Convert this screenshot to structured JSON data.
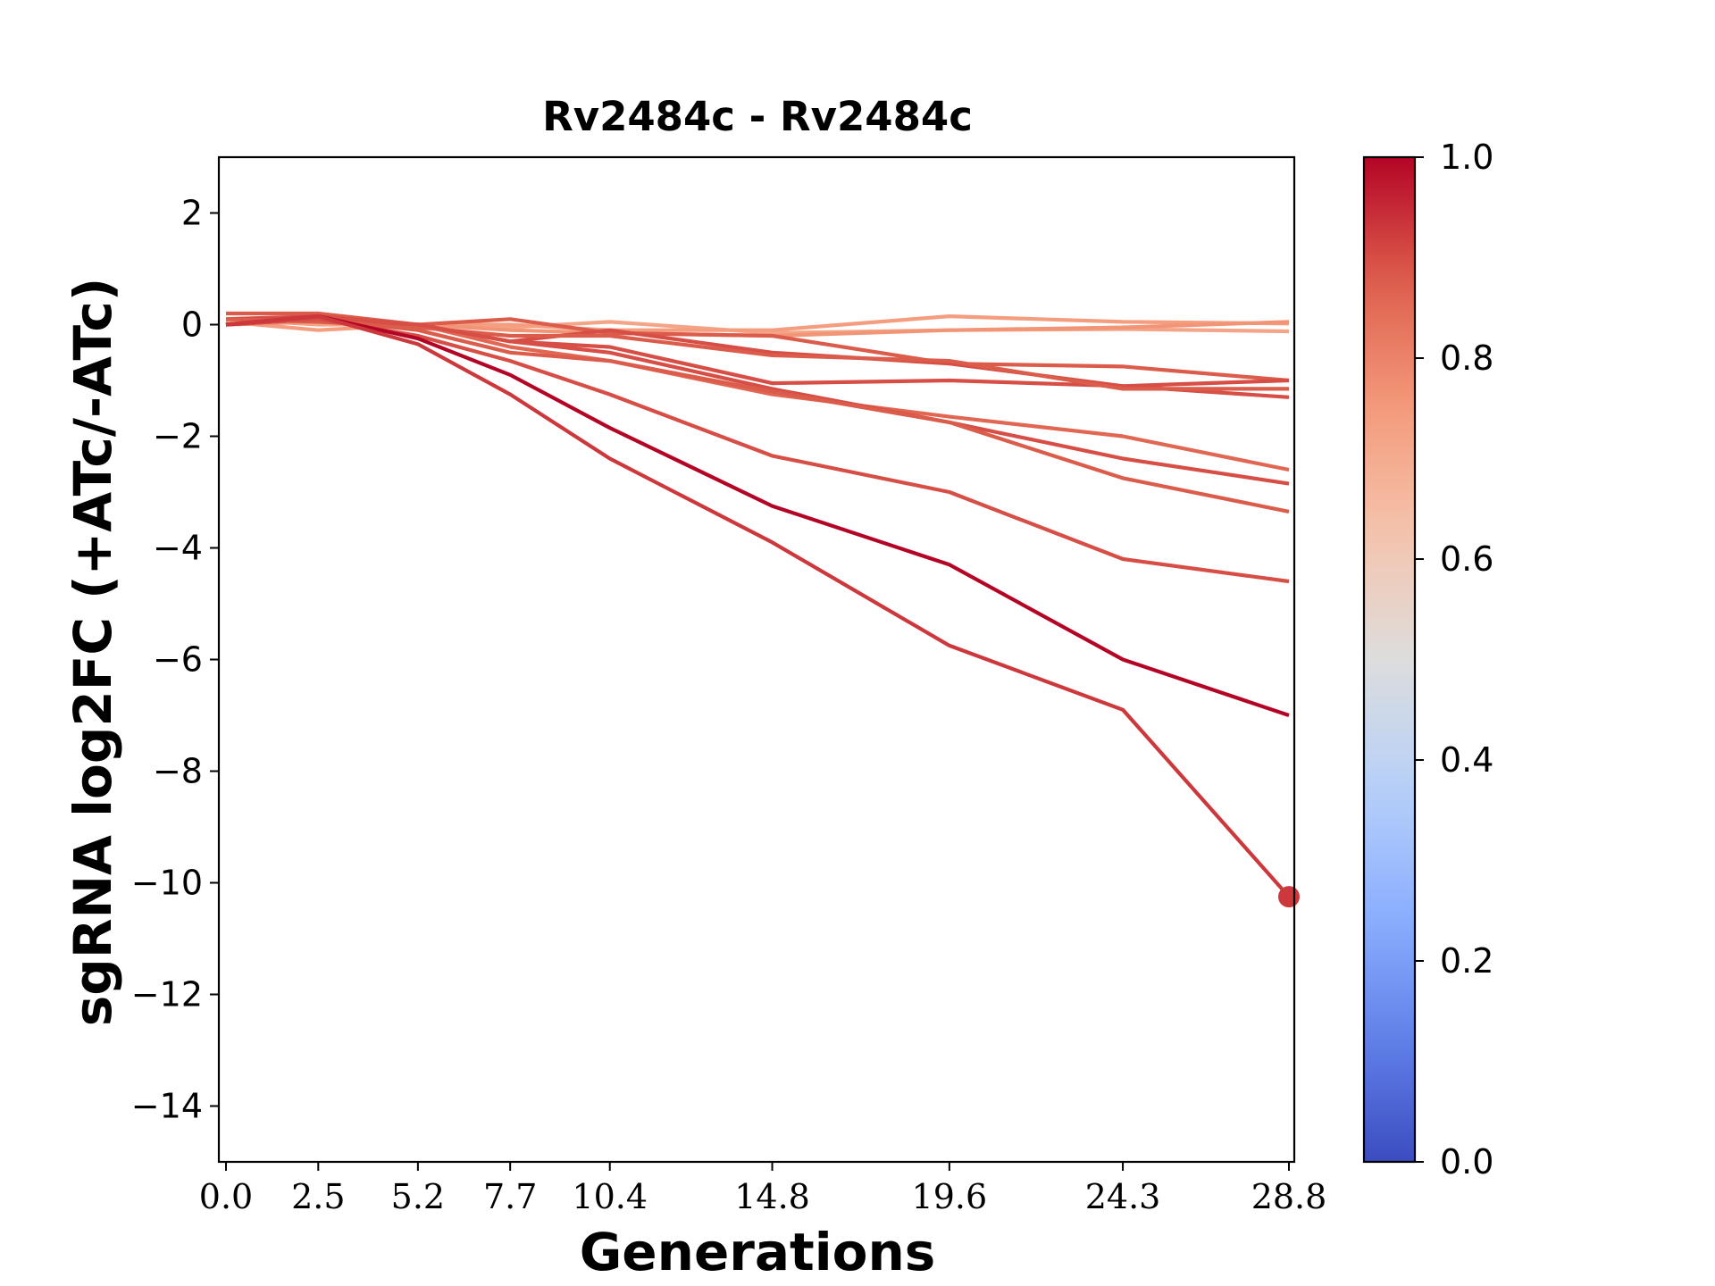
{
  "chart_data": {
    "type": "line",
    "title": "Rv2484c - Rv2484c",
    "xlabel": "Generations",
    "ylabel": "sgRNA log2FC (+ATc/-ATc)",
    "x": [
      0.0,
      2.5,
      5.2,
      7.7,
      10.4,
      14.8,
      19.6,
      24.3,
      28.8
    ],
    "x_tick_labels": [
      "0.0",
      "2.5",
      "5.2",
      "7.7",
      "10.4",
      "14.8",
      "19.6",
      "24.3",
      "28.8"
    ],
    "ylim": [
      -15,
      3
    ],
    "y_ticks": [
      2,
      0,
      -2,
      -4,
      -6,
      -8,
      -10,
      -12,
      -14
    ],
    "y_tick_labels": [
      "2",
      "0",
      "−2",
      "−4",
      "−6",
      "−8",
      "−10",
      "−12",
      "−14"
    ],
    "grid": false,
    "colormap": "coolwarm",
    "colorbar": {
      "range": [
        0.0,
        1.0
      ],
      "ticks": [
        0.0,
        0.2,
        0.4,
        0.6,
        0.8,
        1.0
      ],
      "tick_labels": [
        "0.0",
        "0.2",
        "0.4",
        "0.6",
        "0.8",
        "1.0"
      ]
    },
    "series": [
      {
        "color_value": 0.72,
        "values": [
          0.1,
          0.0,
          0.0,
          -0.05,
          0.05,
          -0.15,
          -0.1,
          -0.08,
          -0.12
        ]
      },
      {
        "color_value": 0.74,
        "values": [
          0.05,
          -0.1,
          0.0,
          0.0,
          -0.1,
          -0.1,
          0.15,
          0.05,
          0.02
        ]
      },
      {
        "color_value": 0.76,
        "values": [
          0.0,
          0.05,
          0.0,
          -0.1,
          -0.15,
          -0.2,
          -0.1,
          -0.05,
          0.05
        ]
      },
      {
        "color_value": 0.88,
        "values": [
          0.2,
          0.2,
          0.0,
          0.1,
          -0.15,
          -0.2,
          -0.7,
          -0.75,
          -1.0
        ]
      },
      {
        "color_value": 0.9,
        "values": [
          0.1,
          0.15,
          0.0,
          -0.3,
          -0.4,
          -1.05,
          -1.0,
          -1.1,
          -1.0
        ]
      },
      {
        "color_value": 0.9,
        "values": [
          0.0,
          0.1,
          0.0,
          -0.3,
          -0.1,
          -0.5,
          -0.7,
          -1.1,
          -1.3
        ]
      },
      {
        "color_value": 0.88,
        "values": [
          0.1,
          0.05,
          -0.05,
          -0.2,
          -0.2,
          -0.55,
          -0.65,
          -1.15,
          -1.15
        ]
      },
      {
        "color_value": 0.86,
        "values": [
          0.0,
          0.1,
          0.0,
          -0.4,
          -0.65,
          -1.25,
          -1.65,
          -2.0,
          -2.6
        ]
      },
      {
        "color_value": 0.9,
        "values": [
          0.0,
          0.1,
          0.0,
          -0.3,
          -0.5,
          -1.15,
          -1.75,
          -2.4,
          -2.85
        ]
      },
      {
        "color_value": 0.88,
        "values": [
          0.0,
          0.1,
          -0.1,
          -0.5,
          -0.65,
          -1.2,
          -1.75,
          -2.75,
          -3.35
        ]
      },
      {
        "color_value": 0.9,
        "values": [
          0.0,
          0.1,
          -0.2,
          -0.65,
          -1.25,
          -2.35,
          -3.0,
          -4.2,
          -4.6
        ]
      },
      {
        "color_value": 1.0,
        "values": [
          0.0,
          0.15,
          -0.25,
          -0.9,
          -1.85,
          -3.25,
          -4.3,
          -6.0,
          -7.0
        ]
      },
      {
        "color_value": 0.93,
        "values": [
          0.0,
          0.15,
          -0.35,
          -1.25,
          -2.4,
          -3.9,
          -5.75,
          -6.9,
          -10.25
        ]
      }
    ],
    "end_marker": {
      "x": 28.8,
      "y": -10.25,
      "color_value": 0.93
    }
  }
}
